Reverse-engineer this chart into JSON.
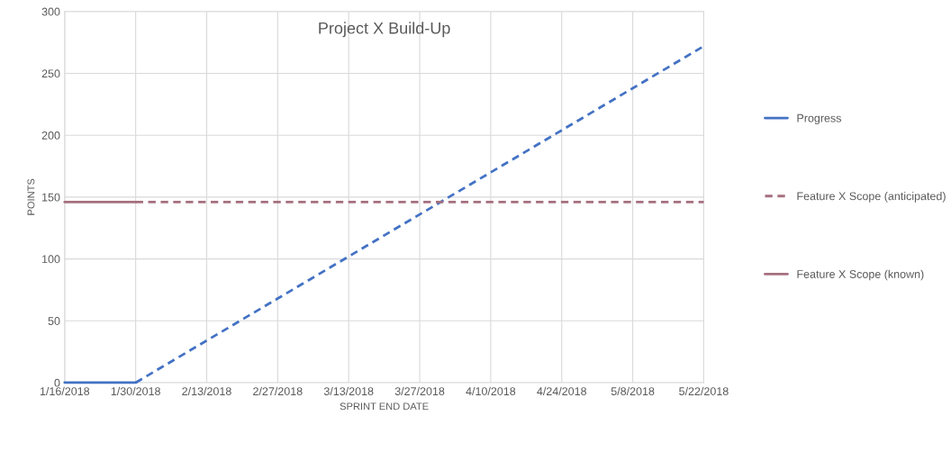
{
  "chart_data": {
    "type": "line",
    "title": "Project X Build-Up",
    "xlabel": "SPRINT END DATE",
    "ylabel": "POINTS",
    "xlim": [
      "2018-01-16",
      "2018-05-22"
    ],
    "xticks": [
      {
        "value": "2018-01-16",
        "label": "1/16/2018"
      },
      {
        "value": "2018-01-30",
        "label": "1/30/2018"
      },
      {
        "value": "2018-02-13",
        "label": "2/13/2018"
      },
      {
        "value": "2018-02-27",
        "label": "2/27/2018"
      },
      {
        "value": "2018-03-13",
        "label": "3/13/2018"
      },
      {
        "value": "2018-03-27",
        "label": "3/27/2018"
      },
      {
        "value": "2018-04-10",
        "label": "4/10/2018"
      },
      {
        "value": "2018-04-24",
        "label": "4/24/2018"
      },
      {
        "value": "2018-05-08",
        "label": "5/8/2018"
      },
      {
        "value": "2018-05-22",
        "label": "5/22/2018"
      }
    ],
    "ylim": [
      0,
      300
    ],
    "yticks": [
      0,
      50,
      100,
      150,
      200,
      250,
      300
    ],
    "grid": true,
    "legend": "right",
    "series": [
      {
        "name": "Progress",
        "color": "#4472c4",
        "line_style": "solid",
        "x": [
          "2018-01-16",
          "2018-01-30"
        ],
        "values": [
          0,
          0
        ]
      },
      {
        "color": "#4472c4",
        "line_style": "dashed",
        "x": [
          "2018-01-30",
          "2018-02-13",
          "2018-02-27",
          "2018-03-13",
          "2018-03-27",
          "2018-04-10",
          "2018-04-24",
          "2018-05-08",
          "2018-05-22"
        ],
        "values": [
          0,
          34,
          68,
          102,
          136,
          170,
          204,
          238,
          272
        ]
      },
      {
        "name": "Feature X Scope (anticipated)",
        "color": "#a5707f",
        "line_style": "dashed",
        "x": [
          "2018-01-30",
          "2018-05-22"
        ],
        "values": [
          146,
          146
        ]
      },
      {
        "name": "Feature X Scope (known)",
        "color": "#a5707f",
        "line_style": "solid",
        "x": [
          "2018-01-16",
          "2018-01-30"
        ],
        "values": [
          146,
          146
        ]
      }
    ]
  }
}
